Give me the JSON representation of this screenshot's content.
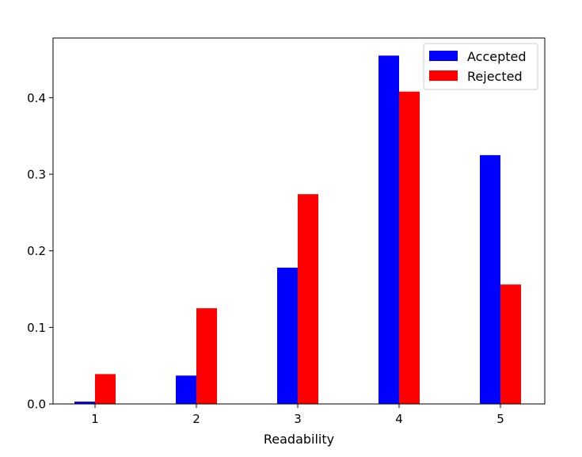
{
  "chart_data": {
    "type": "bar",
    "title": "",
    "xlabel": "Readability",
    "ylabel": "",
    "categories": [
      "1",
      "2",
      "3",
      "4",
      "5"
    ],
    "series": [
      {
        "name": "Accepted",
        "color": "#0000ff",
        "values": [
          0.003,
          0.037,
          0.178,
          0.455,
          0.325
        ]
      },
      {
        "name": "Rejected",
        "color": "#ff0000",
        "values": [
          0.039,
          0.125,
          0.274,
          0.408,
          0.156
        ]
      }
    ],
    "yticks": [
      "0.0",
      "0.1",
      "0.2",
      "0.3",
      "0.4"
    ],
    "ylim": [
      0,
      0.478
    ],
    "grid": false,
    "legend_position": "top-right"
  }
}
